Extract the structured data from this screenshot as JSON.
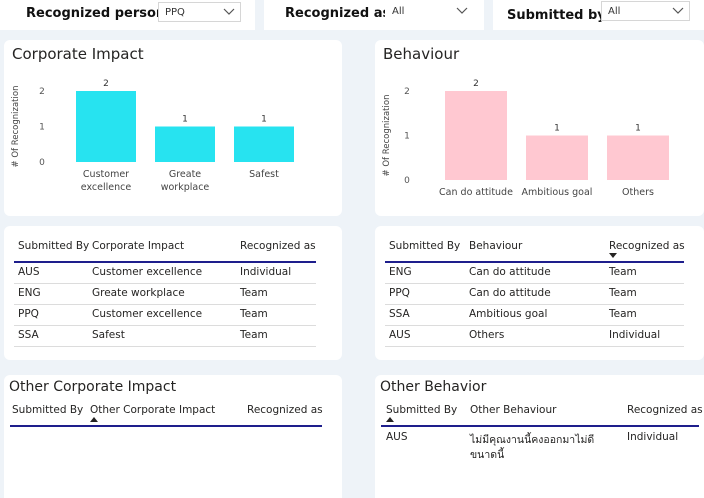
{
  "filters": {
    "recognized_person": {
      "label": "Recognized person",
      "value": "PPQ"
    },
    "recognized_as": {
      "label": "Recognized as",
      "value": "All"
    },
    "submitted_by": {
      "label": "Submitted by",
      "value": "All"
    }
  },
  "corporate_chart": {
    "title": "Corporate Impact"
  },
  "behaviour_chart": {
    "title": "Behaviour"
  },
  "chart_data": [
    {
      "type": "bar",
      "title": "Corporate Impact",
      "ylabel": "# Of Recognization",
      "categories": [
        "Customer excellence",
        "Greate workplace",
        "Safest"
      ],
      "category_lines": [
        [
          "Customer",
          "excellence"
        ],
        [
          "Greate",
          "workplace"
        ],
        [
          "Safest"
        ]
      ],
      "values": [
        2,
        1,
        1
      ],
      "yticks": [
        0,
        1,
        2
      ],
      "ylim": [
        0,
        2
      ],
      "color": "#27e3f0"
    },
    {
      "type": "bar",
      "title": "Behaviour",
      "ylabel": "# Of Recognization",
      "categories": [
        "Can do attitude",
        "Ambitious goal",
        "Others"
      ],
      "category_lines": [
        [
          "Can do attitude"
        ],
        [
          "Ambitious goal"
        ],
        [
          "Others"
        ]
      ],
      "values": [
        2,
        1,
        1
      ],
      "yticks": [
        0,
        1,
        2
      ],
      "ylim": [
        0,
        2
      ],
      "color": "#ffc8d1"
    }
  ],
  "corporate_table": {
    "headers": [
      "Submitted By",
      "Corporate Impact",
      "Recognized as"
    ],
    "rows": [
      [
        "AUS",
        "Customer excellence",
        "Individual"
      ],
      [
        "ENG",
        "Greate workplace",
        "Team"
      ],
      [
        "PPQ",
        "Customer excellence",
        "Team"
      ],
      [
        "SSA",
        "Safest",
        "Team"
      ]
    ]
  },
  "behaviour_table": {
    "headers": [
      "Submitted By",
      "Behaviour",
      "Recognized as"
    ],
    "rows": [
      [
        "ENG",
        "Can do attitude",
        "Team"
      ],
      [
        "PPQ",
        "Can do attitude",
        "Team"
      ],
      [
        "SSA",
        "Ambitious goal",
        "Team"
      ],
      [
        "AUS",
        "Others",
        "Individual"
      ]
    ]
  },
  "other_corporate": {
    "title": "Other Corporate Impact",
    "headers": [
      "Submitted By",
      "Other Corporate Impact",
      "Recognized as"
    ]
  },
  "other_behavior": {
    "title": "Other Behavior",
    "headers": [
      "Submitted By",
      "Other Behaviour",
      "Recognized as"
    ],
    "rows": [
      {
        "submitted_by": "AUS",
        "text_line1": "ไม่มีคุณงานนี้คงออกมาไม่ดี",
        "text_line2": "ขนาดนี้",
        "recognized_as": "Individual"
      }
    ]
  }
}
